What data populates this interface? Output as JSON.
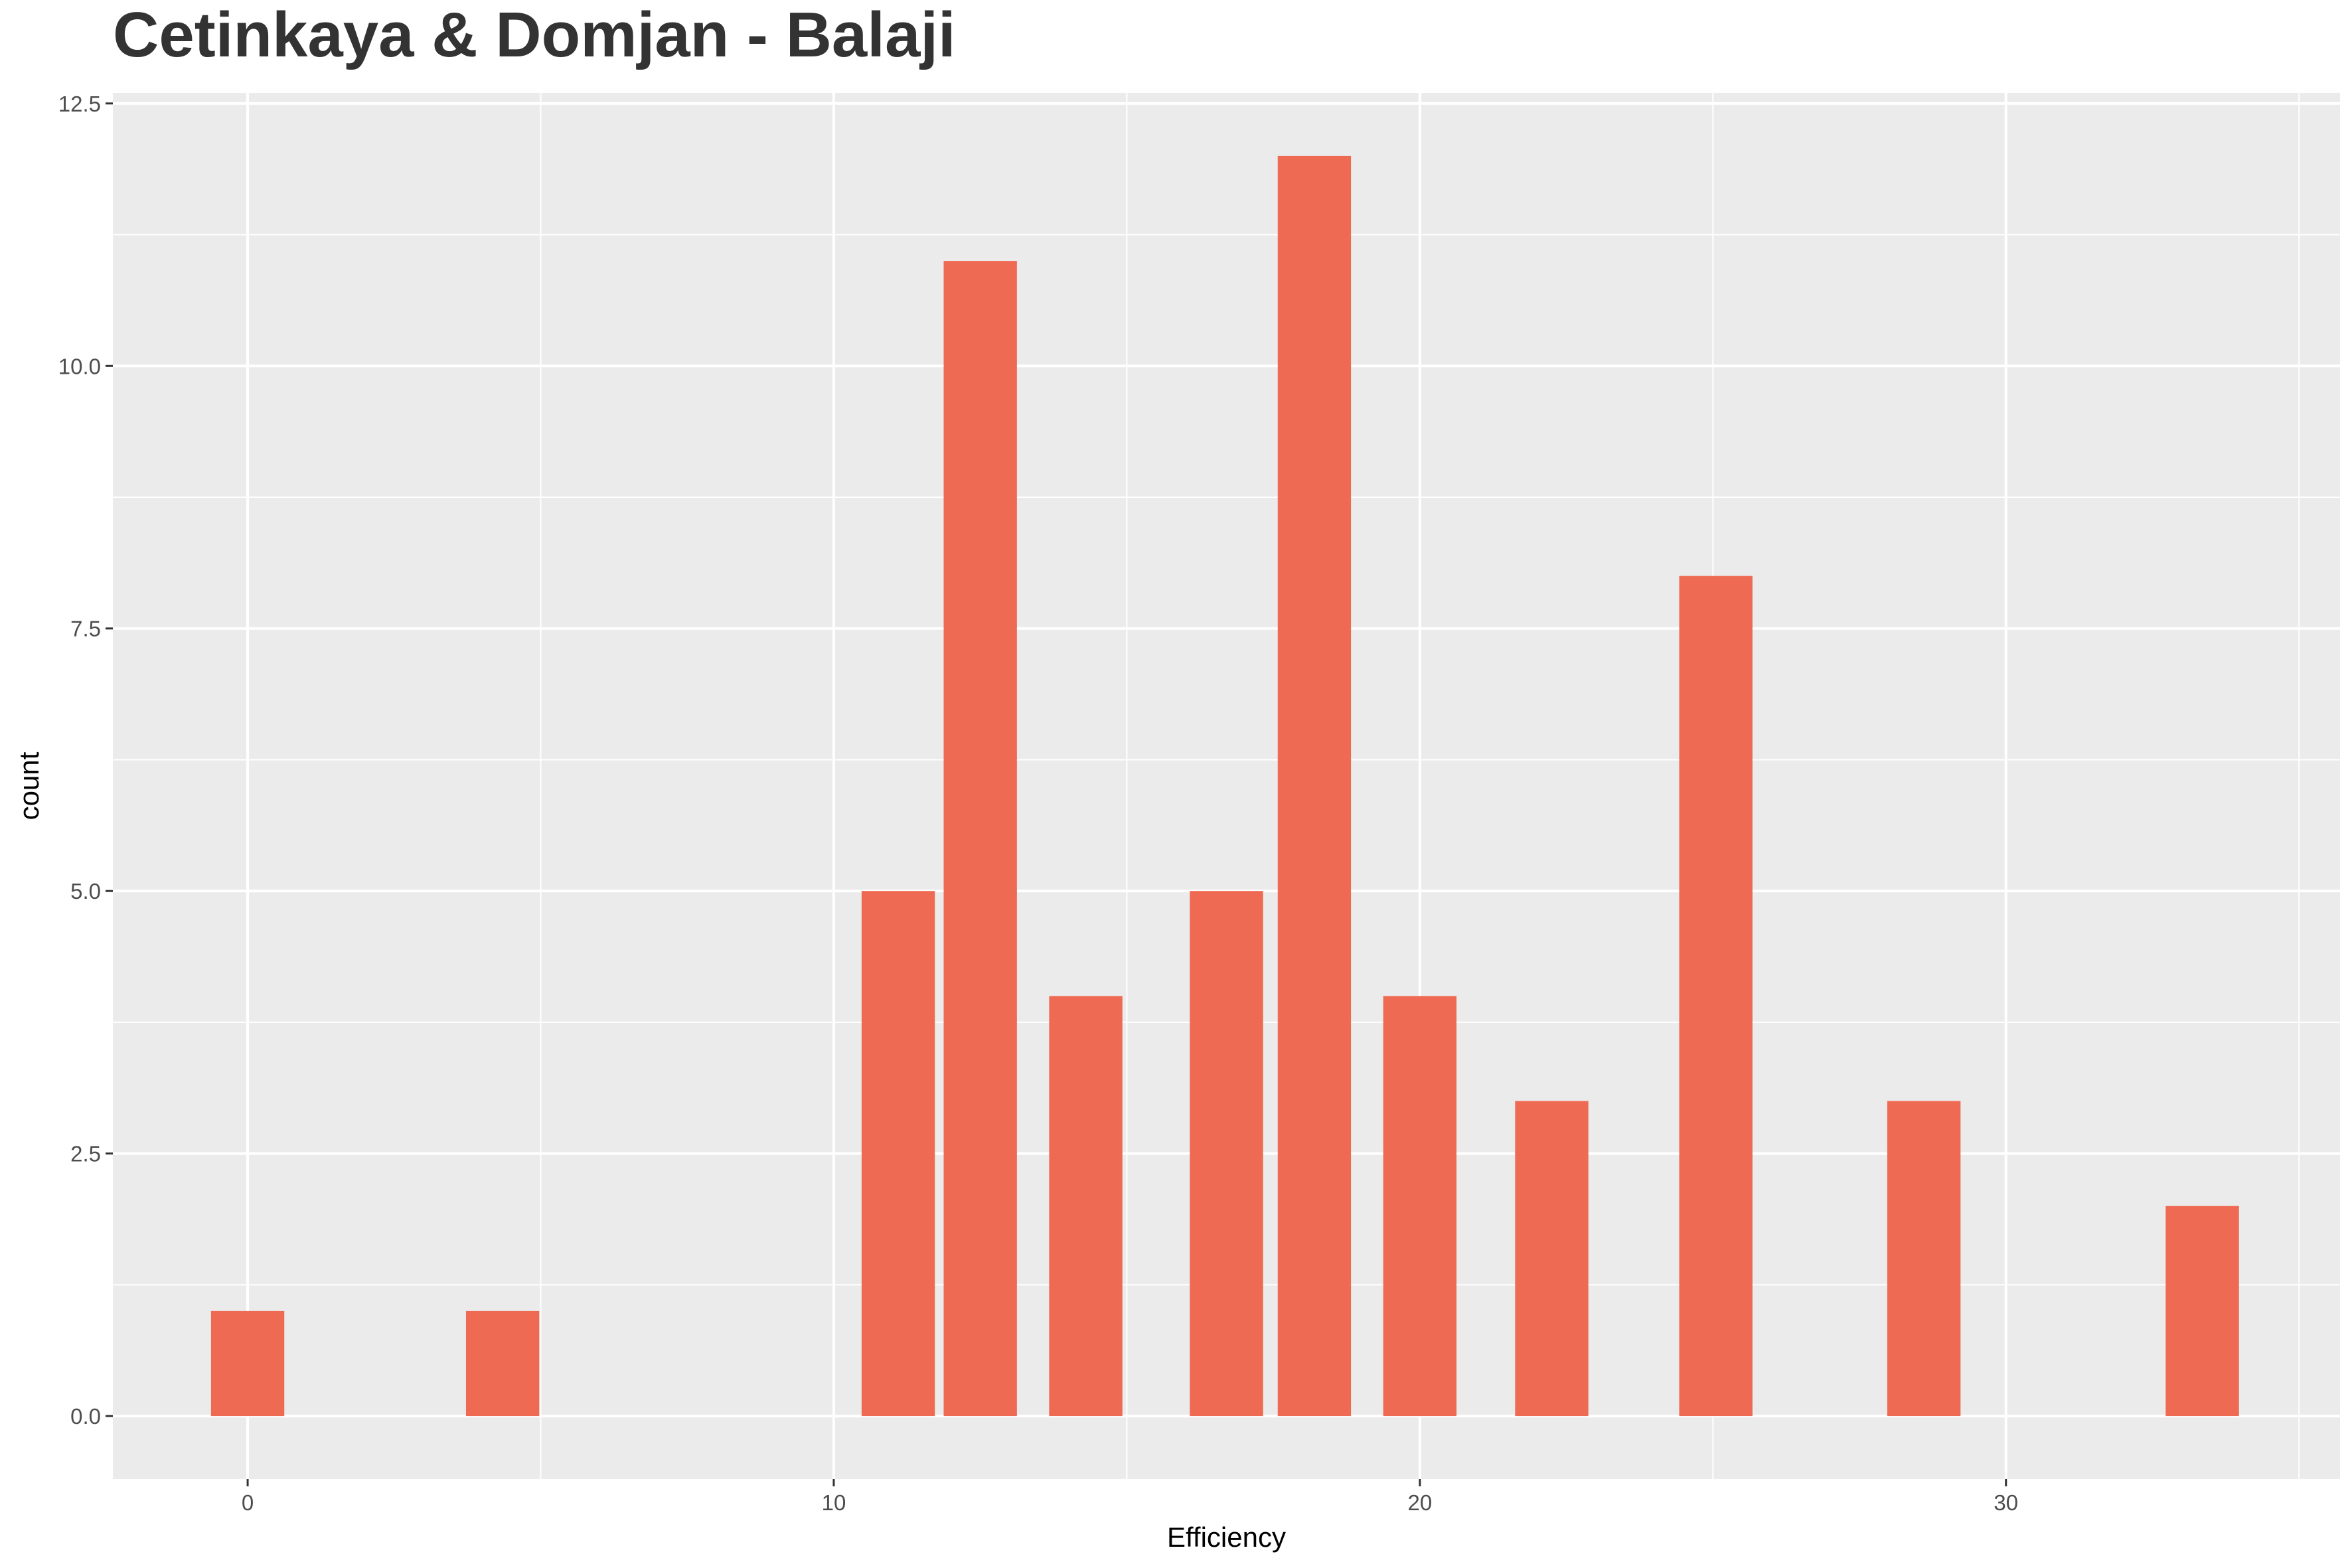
{
  "chart_data": {
    "type": "bar",
    "title": "Cetinkaya & Domjan - Balaji",
    "xlabel": "Efficiency",
    "ylabel": "count",
    "xlim": [
      -2.3,
      35.7
    ],
    "ylim": [
      -0.6,
      12.6
    ],
    "x_ticks": [
      0,
      10,
      20,
      30
    ],
    "x_tick_labels": [
      "0",
      "10",
      "20",
      "30"
    ],
    "y_ticks": [
      0,
      2.5,
      5,
      7.5,
      10,
      12.5
    ],
    "y_tick_labels": [
      "0.0",
      "2.5",
      "5.0",
      "7.5",
      "10.0",
      "12.5"
    ],
    "bar_width": 1.25,
    "bars": [
      {
        "x": 0,
        "count": 1
      },
      {
        "x": 4.35,
        "count": 1
      },
      {
        "x": 11.1,
        "count": 5
      },
      {
        "x": 12.5,
        "count": 11
      },
      {
        "x": 14.3,
        "count": 4
      },
      {
        "x": 16.7,
        "count": 5
      },
      {
        "x": 18.2,
        "count": 12
      },
      {
        "x": 20.0,
        "count": 4
      },
      {
        "x": 22.25,
        "count": 3
      },
      {
        "x": 25.05,
        "count": 8
      },
      {
        "x": 28.6,
        "count": 3
      },
      {
        "x": 33.35,
        "count": 2
      }
    ],
    "grid": true,
    "legend": "none",
    "colors": {
      "bar": "#EF6A52",
      "panel": "#EBEBEB",
      "grid": "#FFFFFF",
      "background": "#FFFFFF"
    }
  }
}
